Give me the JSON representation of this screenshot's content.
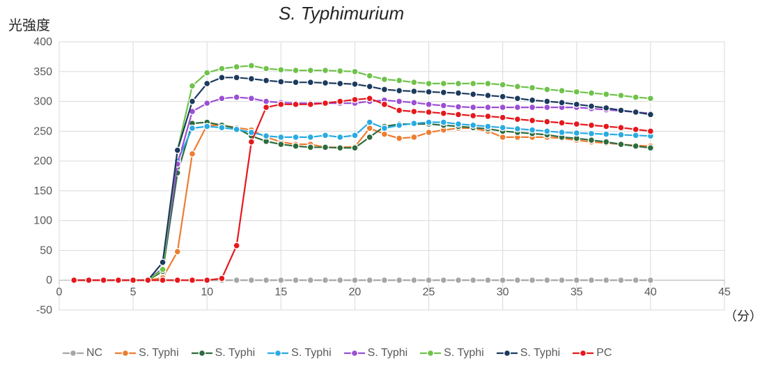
{
  "chart": {
    "type": "line",
    "title": "S. Typhimurium",
    "title_fontsize": 26,
    "title_color": "#262626",
    "y_axis_label": "光強度",
    "y_axis_label_fontsize": 20,
    "x_axis_unit": "（分）",
    "x_axis_unit_fontsize": 18,
    "background_color": "#ffffff",
    "plot_border_color": "#d9d9d9",
    "grid_color": "#d9d9d9",
    "axis_line_color": "#bfbfbf",
    "tick_label_color": "#595959",
    "tick_fontsize": 16,
    "legend_fontsize": 16,
    "xlim": [
      0,
      45
    ],
    "ylim": [
      -50,
      400
    ],
    "xtick_step": 5,
    "ytick_step": 50,
    "line_width": 2.2,
    "marker_radius": 4.5,
    "marker_stroke_width": 1.4,
    "x": [
      1,
      2,
      3,
      4,
      5,
      6,
      7,
      8,
      9,
      10,
      11,
      12,
      13,
      14,
      15,
      16,
      17,
      18,
      19,
      20,
      21,
      22,
      23,
      24,
      25,
      26,
      27,
      28,
      29,
      30,
      31,
      32,
      33,
      34,
      35,
      36,
      37,
      38,
      39,
      40
    ],
    "series": [
      {
        "name": "NC",
        "label": "NC",
        "color": "#a6a6a6",
        "marker_fill": "#a6a6a6",
        "values": [
          0,
          0,
          0,
          0,
          0,
          0,
          0,
          0,
          0,
          0,
          0,
          0,
          0,
          0,
          0,
          0,
          0,
          0,
          0,
          0,
          0,
          0,
          0,
          0,
          0,
          0,
          0,
          0,
          0,
          0,
          0,
          0,
          0,
          0,
          0,
          0,
          0,
          0,
          0,
          0
        ]
      },
      {
        "name": "S. Typhi",
        "label": "S. Typhi",
        "color": "#ed7d31",
        "marker_fill": "#ed7d31",
        "values": [
          0,
          0,
          0,
          0,
          0,
          0,
          4,
          48,
          212,
          260,
          260,
          256,
          252,
          240,
          232,
          228,
          228,
          223,
          223,
          224,
          255,
          245,
          238,
          240,
          248,
          252,
          255,
          255,
          250,
          240,
          240,
          240,
          240,
          238,
          235,
          232,
          230,
          228,
          226,
          225
        ]
      },
      {
        "name": "S. Typhi",
        "label": "S. Typhi",
        "color": "#2e6b3e",
        "marker_fill": "#2e6b3e",
        "values": [
          0,
          0,
          0,
          0,
          0,
          0,
          15,
          180,
          263,
          265,
          260,
          255,
          242,
          233,
          228,
          225,
          223,
          223,
          222,
          222,
          240,
          258,
          262,
          262,
          262,
          260,
          258,
          256,
          254,
          250,
          248,
          246,
          244,
          240,
          238,
          235,
          232,
          228,
          225,
          222
        ]
      },
      {
        "name": "S. Typhi",
        "label": "S. Typhi",
        "color": "#29abe2",
        "marker_fill": "#29abe2",
        "values": [
          0,
          0,
          0,
          0,
          0,
          0,
          20,
          200,
          255,
          258,
          256,
          253,
          248,
          242,
          240,
          240,
          240,
          243,
          240,
          243,
          265,
          255,
          260,
          263,
          265,
          265,
          262,
          260,
          258,
          256,
          254,
          252,
          250,
          248,
          247,
          246,
          245,
          244,
          243,
          242
        ]
      },
      {
        "name": "S. Typhi",
        "label": "S. Typhi",
        "color": "#9b4fd4",
        "marker_fill": "#9b4fd4",
        "values": [
          0,
          0,
          0,
          0,
          0,
          0,
          20,
          195,
          283,
          297,
          305,
          307,
          305,
          300,
          298,
          297,
          297,
          297,
          297,
          297,
          300,
          302,
          300,
          298,
          295,
          293,
          291,
          290,
          290,
          290,
          290,
          290,
          290,
          290,
          290,
          288,
          286,
          284,
          282,
          280
        ]
      },
      {
        "name": "S. Typhi",
        "label": "S. Typhi",
        "color": "#6fc24a",
        "marker_fill": "#6fc24a",
        "values": [
          0,
          0,
          0,
          0,
          0,
          0,
          18,
          218,
          326,
          348,
          355,
          358,
          360,
          355,
          353,
          352,
          352,
          352,
          351,
          350,
          343,
          337,
          335,
          332,
          330,
          330,
          330,
          330,
          330,
          328,
          325,
          323,
          320,
          318,
          316,
          314,
          312,
          310,
          307,
          305
        ]
      },
      {
        "name": "S. Typhi",
        "label": "S. Typhi",
        "color": "#1c3a5e",
        "marker_fill": "#1c3a5e",
        "values": [
          0,
          0,
          0,
          0,
          0,
          0,
          30,
          218,
          300,
          330,
          340,
          340,
          338,
          335,
          333,
          332,
          332,
          331,
          330,
          329,
          325,
          320,
          318,
          317,
          316,
          315,
          314,
          312,
          310,
          308,
          305,
          302,
          300,
          298,
          295,
          292,
          289,
          285,
          282,
          278
        ]
      },
      {
        "name": "PC",
        "label": "PC",
        "color": "#e5181d",
        "marker_fill": "#e5181d",
        "values": [
          0,
          0,
          0,
          0,
          0,
          0,
          0,
          0,
          0,
          0,
          3,
          58,
          232,
          290,
          295,
          295,
          295,
          297,
          300,
          303,
          305,
          295,
          285,
          283,
          282,
          280,
          278,
          276,
          275,
          273,
          270,
          268,
          266,
          264,
          262,
          260,
          258,
          256,
          253,
          250
        ]
      }
    ],
    "legend_order": [
      "NC",
      "S. Typhi",
      "S. Typhi",
      "S. Typhi",
      "S. Typhi",
      "S. Typhi",
      "S. Typhi",
      "PC"
    ]
  }
}
